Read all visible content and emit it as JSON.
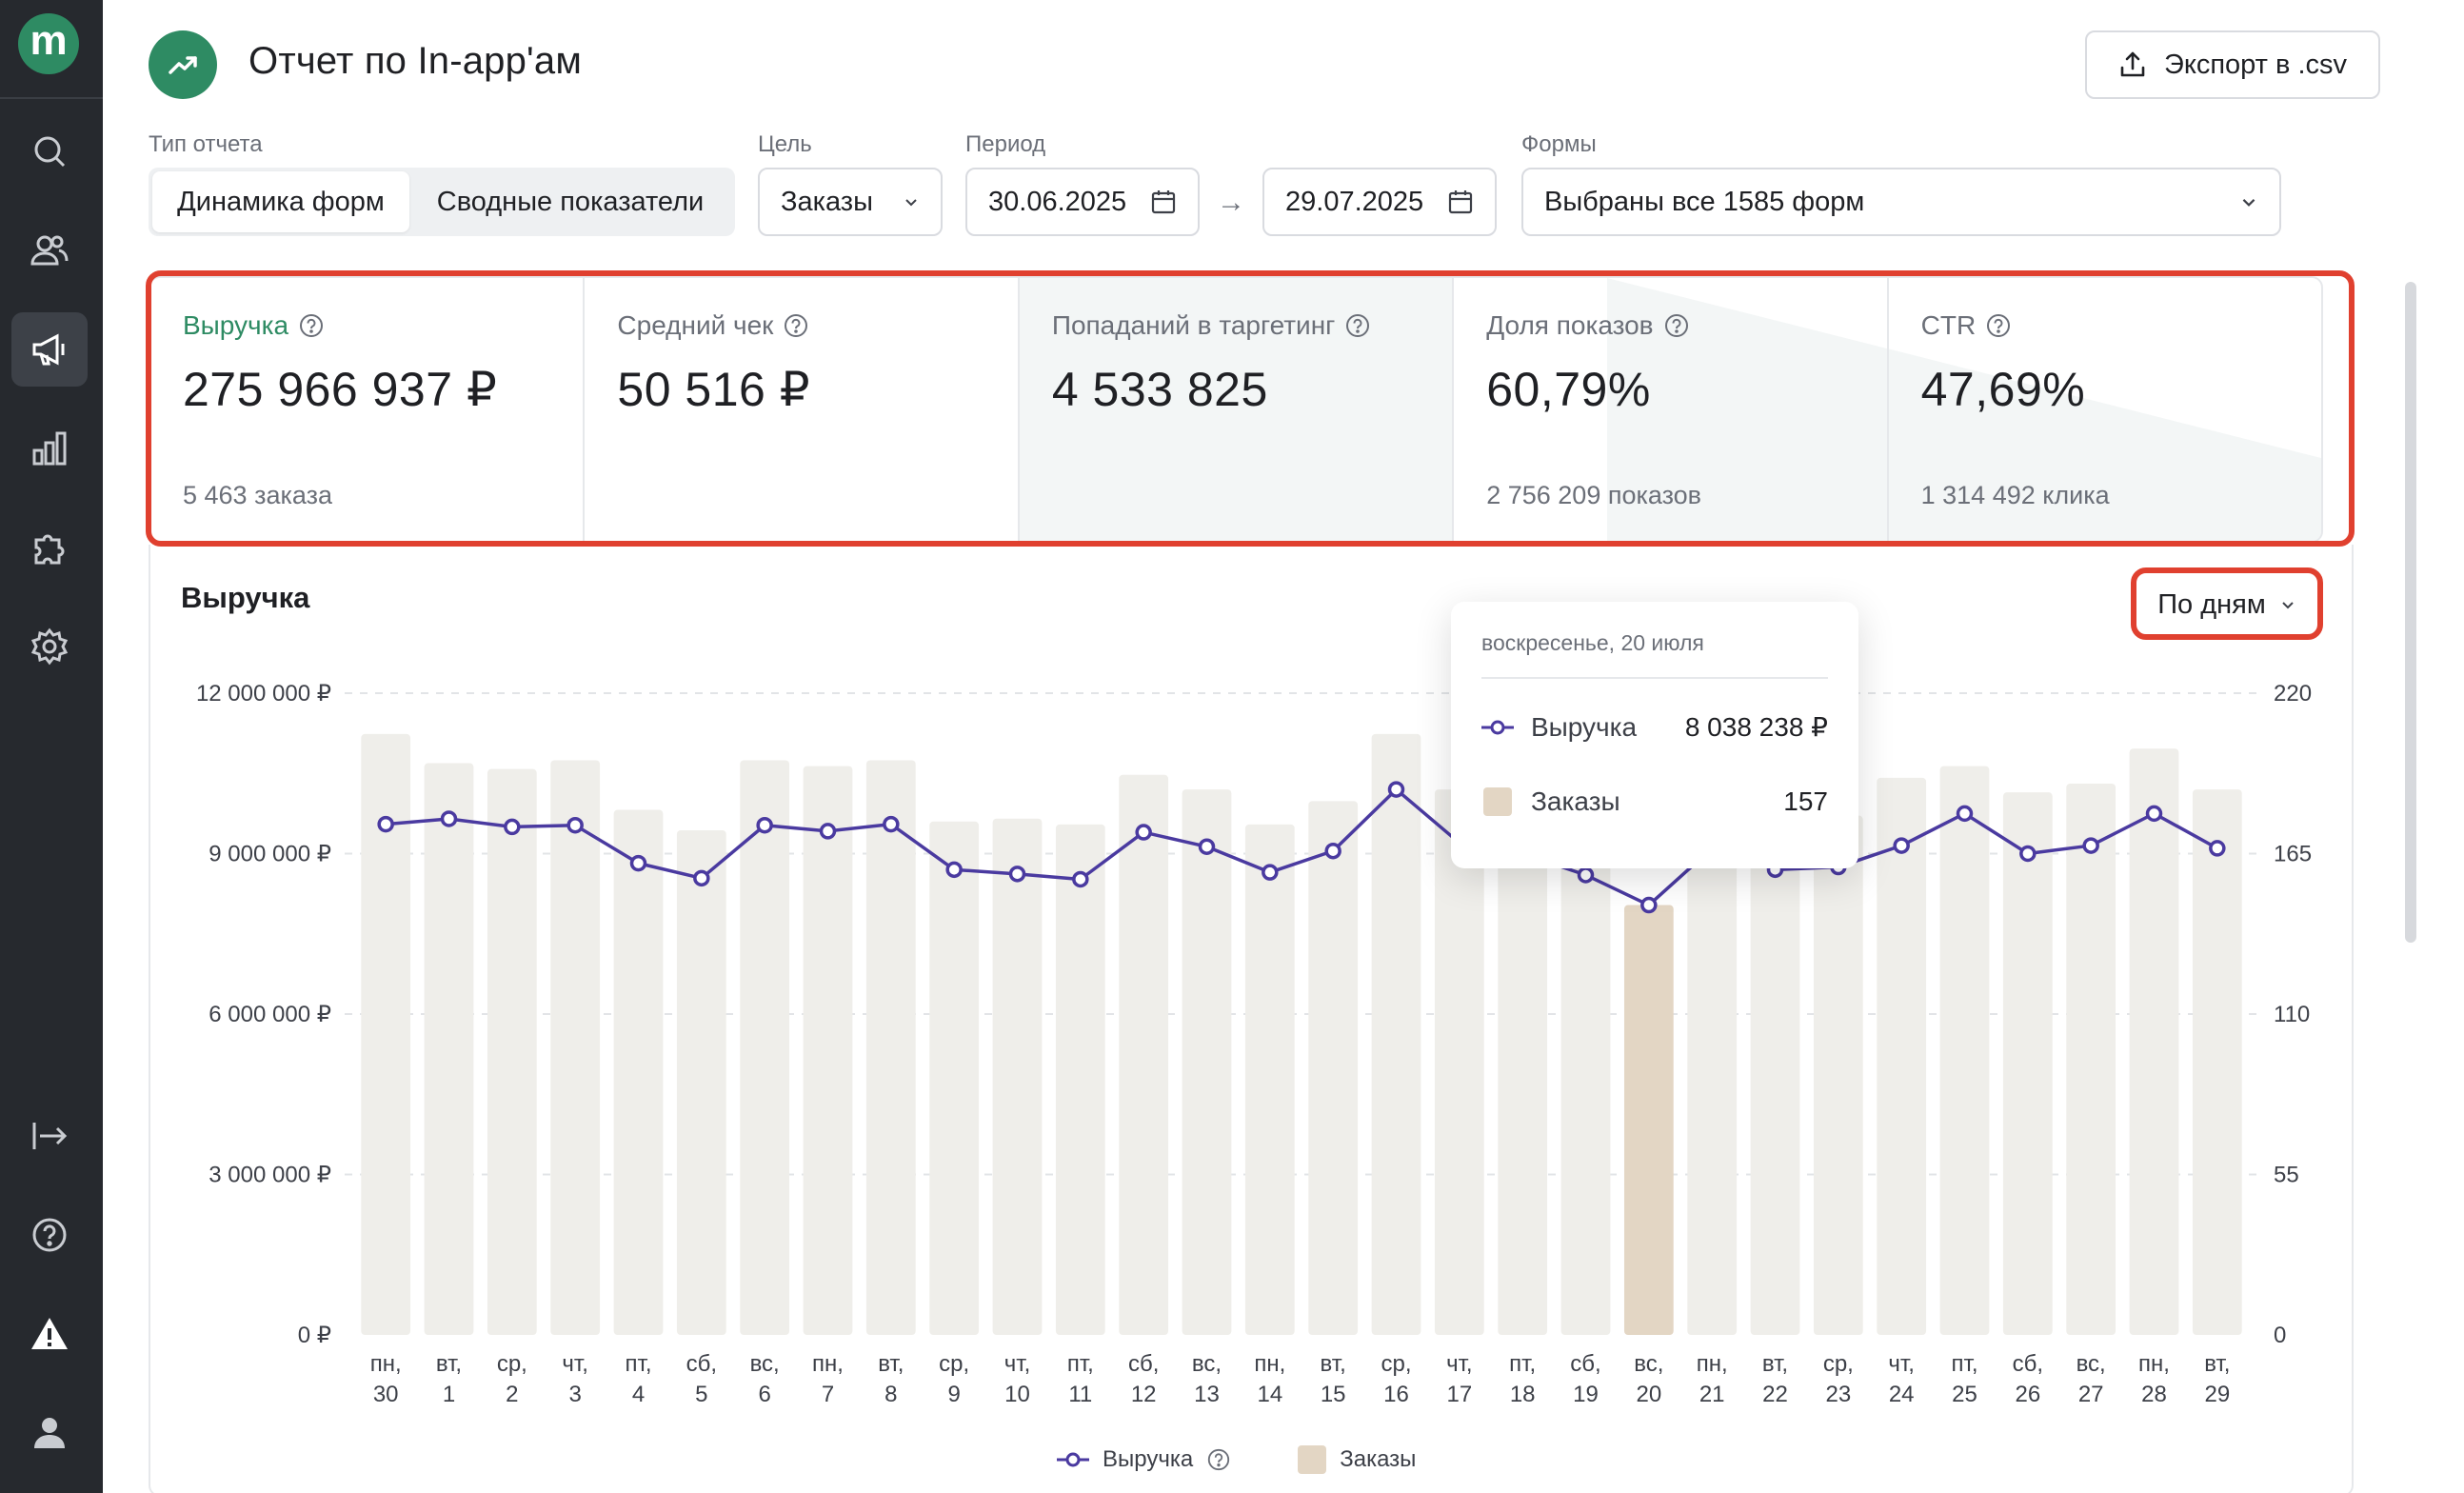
{
  "app": {
    "logo_letter": "m"
  },
  "sidebar": {
    "items": [
      {
        "name": "search",
        "icon": "search-icon",
        "active": false
      },
      {
        "name": "users",
        "icon": "users-icon",
        "active": false
      },
      {
        "name": "campaigns",
        "icon": "megaphone-icon",
        "active": true
      },
      {
        "name": "analytics",
        "icon": "bar-chart-icon",
        "active": false
      },
      {
        "name": "integrations",
        "icon": "puzzle-icon",
        "active": false
      },
      {
        "name": "settings",
        "icon": "gear-icon",
        "active": false
      }
    ],
    "bottom_items": [
      {
        "name": "collapse",
        "icon": "arrow-right-bar-icon"
      },
      {
        "name": "help",
        "icon": "help-icon"
      },
      {
        "name": "alerts",
        "icon": "warning-icon"
      },
      {
        "name": "profile",
        "icon": "user-icon"
      }
    ]
  },
  "header": {
    "title": "Отчет по In-app'ам",
    "export_label": "Экспорт в .csv"
  },
  "filters": {
    "report_type_label": "Тип отчета",
    "report_types": [
      "Динамика форм",
      "Сводные показатели"
    ],
    "goal_label": "Цель",
    "goal_value": "Заказы",
    "period_label": "Период",
    "period_from": "30.06.2025",
    "period_arrow": "→",
    "period_to": "29.07.2025",
    "forms_label": "Формы",
    "forms_value": "Выбраны все 1585 форм"
  },
  "kpis": [
    {
      "label": "Выручка",
      "value": "275 966 937 ₽",
      "sub": "5 463 заказа",
      "accent": true
    },
    {
      "label": "Средний чек",
      "value": "50 516 ₽",
      "sub": ""
    },
    {
      "label": "Попаданий в таргетинг",
      "value": "4 533 825",
      "sub": ""
    },
    {
      "label": "Доля показов",
      "value": "60,79%",
      "sub": "2 756 209 показов"
    },
    {
      "label": "CTR",
      "value": "47,69%",
      "sub": "1 314 492 клика"
    }
  ],
  "chart": {
    "title": "Выручка",
    "period_select": "По дням"
  },
  "tooltip": {
    "date": "воскресенье, 20 июля",
    "rows": [
      {
        "name": "Выручка",
        "value": "8 038 238 ₽"
      },
      {
        "name": "Заказы",
        "value": "157"
      }
    ]
  },
  "legend": {
    "revenue": "Выручка",
    "orders": "Заказы"
  },
  "colors": {
    "accent": "#2e8b63",
    "line": "#4a3aa0",
    "bar": "#efeeea",
    "bar_highlight": "#e3d6c4",
    "highlight": "#e0402f"
  },
  "chart_data": {
    "type": "bar+line",
    "categories": [
      [
        "пн,",
        "30"
      ],
      [
        "вт,",
        "1"
      ],
      [
        "ср,",
        "2"
      ],
      [
        "чт,",
        "3"
      ],
      [
        "пт,",
        "4"
      ],
      [
        "сб,",
        "5"
      ],
      [
        "вс,",
        "6"
      ],
      [
        "пн,",
        "7"
      ],
      [
        "вт,",
        "8"
      ],
      [
        "ср,",
        "9"
      ],
      [
        "чт,",
        "10"
      ],
      [
        "пт,",
        "11"
      ],
      [
        "сб,",
        "12"
      ],
      [
        "вс,",
        "13"
      ],
      [
        "пн,",
        "14"
      ],
      [
        "вт,",
        "15"
      ],
      [
        "ср,",
        "16"
      ],
      [
        "чт,",
        "17"
      ],
      [
        "пт,",
        "18"
      ],
      [
        "сб,",
        "19"
      ],
      [
        "вс,",
        "20"
      ],
      [
        "пн,",
        "21"
      ],
      [
        "вт,",
        "22"
      ],
      [
        "ср,",
        "23"
      ],
      [
        "чт,",
        "24"
      ],
      [
        "пт,",
        "25"
      ],
      [
        "сб,",
        "26"
      ],
      [
        "вс,",
        "27"
      ],
      [
        "пн,",
        "28"
      ],
      [
        "вт,",
        "29"
      ]
    ],
    "series": [
      {
        "name": "Выручка",
        "axis": "left",
        "kind": "line",
        "values": [
          9550000,
          9650000,
          9500000,
          9530000,
          8820000,
          8540000,
          9530000,
          9420000,
          9550000,
          8700000,
          8620000,
          8520000,
          9400000,
          9130000,
          8650000,
          9050000,
          10200000,
          9200000,
          9000000,
          8600000,
          8038238,
          9100000,
          8700000,
          8750000,
          9150000,
          9750000,
          9000000,
          9150000,
          9750000,
          9100000
        ]
      },
      {
        "name": "Заказы",
        "axis": "right",
        "kind": "bar",
        "values": [
          206,
          196,
          194,
          197,
          180,
          173,
          197,
          195,
          197,
          176,
          177,
          175,
          192,
          187,
          175,
          183,
          206,
          187,
          180,
          176,
          157,
          181,
          180,
          178,
          191,
          195,
          186,
          189,
          201,
          187
        ]
      }
    ],
    "highlight_index": 20,
    "y_left": {
      "ticks": [
        "0 ₽",
        "3 000 000 ₽",
        "6 000 000 ₽",
        "9 000 000 ₽",
        "12 000 000 ₽"
      ],
      "range": [
        0,
        12000000
      ]
    },
    "y_right": {
      "ticks": [
        "0",
        "55",
        "110",
        "165",
        "220"
      ],
      "range": [
        0,
        220
      ]
    },
    "grid": true,
    "legend_position": "bottom"
  }
}
